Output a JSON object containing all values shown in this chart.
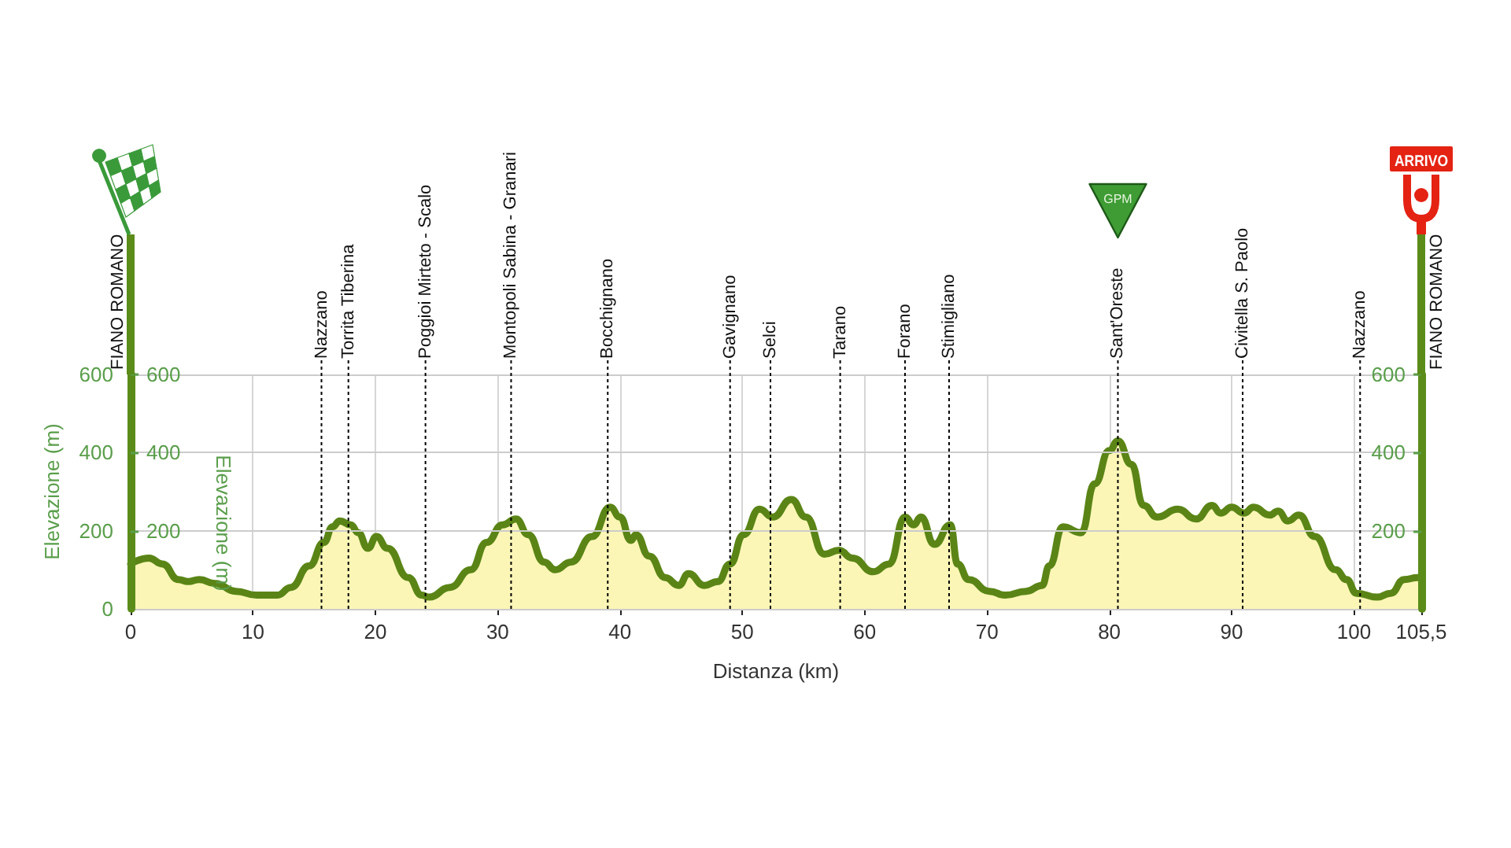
{
  "chart_data": {
    "type": "area",
    "xlabel": "Distanza (km)",
    "ylabel": "Elevazione (m)",
    "y3label": "Elevazione (m)",
    "x": [
      0,
      1.5,
      2.6,
      3.9,
      4.7,
      5.6,
      6.9,
      8.6,
      10.3,
      12.0,
      13.1,
      14.6,
      15.8,
      16.5,
      17.1,
      18.0,
      18.6,
      19.4,
      20.1,
      21.0,
      22.7,
      23.8,
      24.4,
      26.1,
      27.8,
      29.1,
      30.4,
      31.5,
      32.5,
      33.8,
      34.7,
      36.0,
      37.7,
      39.2,
      40.0,
      40.9,
      41.3,
      42.4,
      43.7,
      44.8,
      45.6,
      46.9,
      48.0,
      49.0,
      50.1,
      51.4,
      52.5,
      54.0,
      55.2,
      56.7,
      57.9,
      59.0,
      60.7,
      62.0,
      63.3,
      64.0,
      64.6,
      65.7,
      67.0,
      67.6,
      68.5,
      70.2,
      71.5,
      73.2,
      74.5,
      75.1,
      76.2,
      77.7,
      78.8,
      80.0,
      80.7,
      81.8,
      82.8,
      83.9,
      85.6,
      87.1,
      88.4,
      89.1,
      90.0,
      91.0,
      91.8,
      93.1,
      93.8,
      94.6,
      95.5,
      96.8,
      98.5,
      99.4,
      100.2,
      101.9,
      103.0,
      104.1,
      105.2,
      105.5
    ],
    "values": [
      115,
      130,
      115,
      75,
      70,
      75,
      65,
      45,
      35,
      35,
      55,
      110,
      170,
      210,
      225,
      215,
      195,
      155,
      185,
      155,
      80,
      35,
      30,
      55,
      100,
      170,
      215,
      230,
      190,
      120,
      100,
      120,
      185,
      260,
      235,
      175,
      190,
      135,
      80,
      60,
      90,
      60,
      70,
      115,
      190,
      255,
      235,
      280,
      235,
      140,
      150,
      130,
      95,
      115,
      235,
      215,
      235,
      165,
      215,
      115,
      75,
      45,
      35,
      45,
      60,
      110,
      210,
      195,
      320,
      405,
      430,
      370,
      265,
      235,
      255,
      230,
      265,
      245,
      260,
      245,
      260,
      240,
      250,
      225,
      240,
      185,
      100,
      75,
      40,
      30,
      40,
      75,
      80,
      80
    ],
    "color": "#5a8516",
    "marker": "none",
    "grid": true,
    "xlim": [
      0,
      105.5
    ],
    "xticks": [
      0,
      10,
      20,
      30,
      40,
      50,
      60,
      70,
      80,
      90,
      100,
      {
        "value": 105.5,
        "label": "105,5"
      }
    ],
    "ylim": [
      0,
      600
    ],
    "yticks": [
      0,
      200,
      400,
      600
    ],
    "y2lim": [
      0,
      600
    ],
    "y2ticks": [
      200,
      400,
      600
    ],
    "y3lim": [
      0,
      600
    ],
    "y3ticks": [
      200,
      400,
      600
    ],
    "ref_lines": [
      {
        "axis": "x",
        "value": 15.6,
        "label": "Nazzano",
        "color": "#000000",
        "line_style": "dotted"
      },
      {
        "axis": "x",
        "value": 17.8,
        "label": "Torrita Tiberina",
        "color": "#000000",
        "line_style": "dotted"
      },
      {
        "axis": "x",
        "value": 24.1,
        "label": "Poggioi Mirteto - Scalo",
        "color": "#000000",
        "line_style": "dotted"
      },
      {
        "axis": "x",
        "value": 31.1,
        "label": "Montopoli Sabina - Granari",
        "color": "#000000",
        "line_style": "dotted"
      },
      {
        "axis": "x",
        "value": 39.0,
        "label": "Bocchignano",
        "color": "#000000",
        "line_style": "dotted"
      },
      {
        "axis": "x",
        "value": 49.0,
        "label": "Gavignano",
        "color": "#000000",
        "line_style": "dotted"
      },
      {
        "axis": "x",
        "value": 52.3,
        "label": "Selci",
        "color": "#000000",
        "line_style": "dotted"
      },
      {
        "axis": "x",
        "value": 58.0,
        "label": "Tarano",
        "color": "#000000",
        "line_style": "dotted"
      },
      {
        "axis": "x",
        "value": 63.3,
        "label": "Forano",
        "color": "#000000",
        "line_style": "dotted"
      },
      {
        "axis": "x",
        "value": 66.9,
        "label": "Stimigliano",
        "color": "#000000",
        "line_style": "dotted"
      },
      {
        "axis": "x",
        "value": 80.7,
        "label": "Sant'Oreste",
        "color": "#000000",
        "line_style": "dotted"
      },
      {
        "axis": "x",
        "value": 90.9,
        "label": "Civitella S. Paolo",
        "color": "#000000",
        "line_style": "dotted"
      },
      {
        "axis": "x",
        "value": 100.5,
        "label": "Nazzano",
        "color": "#000000",
        "line_style": "dotted"
      }
    ],
    "annotations": [
      "FIANO ROMANO",
      "GPM",
      "FIANO ROMANO",
      "ARRIVO"
    ]
  }
}
